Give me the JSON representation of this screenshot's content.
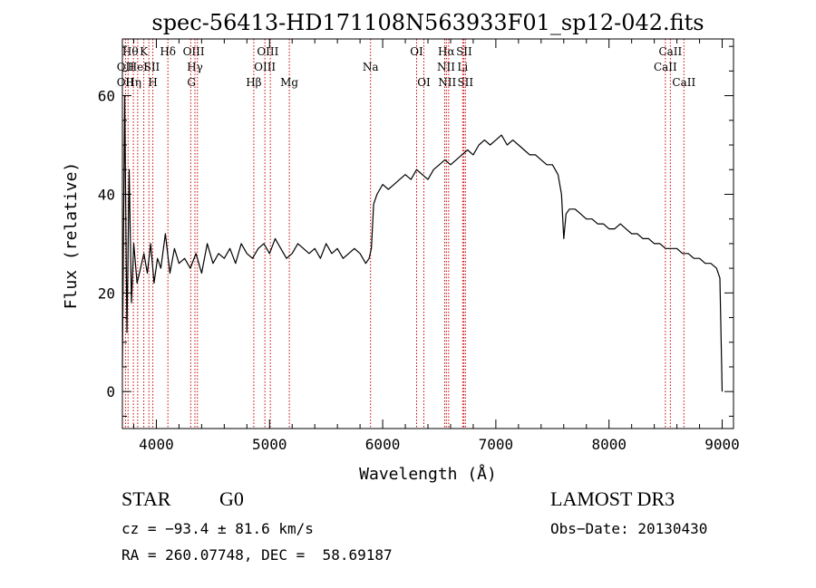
{
  "chart_data": {
    "type": "line",
    "title": "spec-56413-HD171108N563933F01_sp12-042.fits",
    "xlabel": "Wavelength (Å)",
    "ylabel": "Flux (relative)",
    "xlim": [
      3700,
      9100
    ],
    "ylim": [
      -7.5,
      71.5
    ],
    "xticks": [
      "4000",
      "5000",
      "6000",
      "7000",
      "8000",
      "9000"
    ],
    "yticks": [
      "0",
      "20",
      "40",
      "60"
    ],
    "grid": false,
    "series": [
      {
        "name": "",
        "color": "#000000",
        "x": [
          3700,
          3720,
          3740,
          3760,
          3780,
          3800,
          3830,
          3860,
          3890,
          3920,
          3950,
          3980,
          4010,
          4040,
          4080,
          4120,
          4160,
          4200,
          4250,
          4300,
          4350,
          4400,
          4450,
          4500,
          4550,
          4600,
          4650,
          4700,
          4750,
          4800,
          4850,
          4900,
          4950,
          5000,
          5050,
          5100,
          5150,
          5200,
          5250,
          5300,
          5350,
          5400,
          5450,
          5500,
          5550,
          5600,
          5650,
          5700,
          5750,
          5800,
          5850,
          5880,
          5900,
          5920,
          5950,
          6000,
          6050,
          6100,
          6150,
          6200,
          6250,
          6300,
          6350,
          6400,
          6450,
          6500,
          6550,
          6600,
          6650,
          6700,
          6750,
          6800,
          6850,
          6900,
          6950,
          7000,
          7050,
          7100,
          7150,
          7200,
          7250,
          7300,
          7350,
          7400,
          7450,
          7500,
          7550,
          7580,
          7600,
          7620,
          7650,
          7700,
          7750,
          7800,
          7850,
          7900,
          7950,
          8000,
          8050,
          8100,
          8150,
          8200,
          8250,
          8300,
          8350,
          8400,
          8450,
          8500,
          8550,
          8600,
          8650,
          8700,
          8750,
          8800,
          8850,
          8900,
          8950,
          8980,
          9000
        ],
        "y": [
          5,
          60,
          12,
          45,
          18,
          30,
          22,
          25,
          28,
          24,
          30,
          22,
          27,
          25,
          32,
          24,
          29,
          26,
          27,
          25,
          28,
          24,
          30,
          26,
          28,
          27,
          29,
          26,
          30,
          28,
          27,
          29,
          30,
          28,
          31,
          29,
          27,
          28,
          30,
          29,
          28,
          29,
          27,
          30,
          28,
          29,
          27,
          28,
          29,
          28,
          26,
          27,
          29,
          38,
          40,
          42,
          41,
          42,
          43,
          44,
          43,
          45,
          44,
          43,
          45,
          46,
          47,
          46,
          47,
          48,
          49,
          48,
          50,
          51,
          50,
          51,
          52,
          50,
          51,
          50,
          49,
          48,
          48,
          47,
          46,
          46,
          44,
          40,
          31,
          36,
          37,
          37,
          36,
          35,
          35,
          34,
          34,
          33,
          33,
          34,
          33,
          32,
          32,
          31,
          31,
          30,
          30,
          29,
          29,
          29,
          28,
          28,
          27,
          27,
          26,
          26,
          25,
          23,
          0
        ]
      }
    ],
    "line_markers": [
      {
        "x": 3727,
        "names": [
          "OII"
        ]
      },
      {
        "x": 3750,
        "names": [
          "Hθ"
        ]
      },
      {
        "x": 3797,
        "names": [
          "Hη"
        ]
      },
      {
        "x": 3835,
        "names": [
          "HeI"
        ]
      },
      {
        "x": 3889,
        "names": [
          "K"
        ]
      },
      {
        "x": 3934,
        "names": [
          "SII"
        ]
      },
      {
        "x": 3969,
        "names": [
          "H"
        ]
      },
      {
        "x": 4102,
        "names": [
          "Hδ"
        ]
      },
      {
        "x": 4304,
        "names": [
          "OIII"
        ]
      },
      {
        "x": 4341,
        "names": [
          "Hγ"
        ]
      },
      {
        "x": 4363,
        "names": [
          "G"
        ]
      },
      {
        "x": 4861,
        "names": [
          "Hβ"
        ]
      },
      {
        "x": 4959,
        "names": [
          "OIII"
        ]
      },
      {
        "x": 5007,
        "names": [
          "OIII"
        ]
      },
      {
        "x": 5175,
        "names": [
          "Mg"
        ]
      },
      {
        "x": 5893,
        "names": [
          "Na"
        ]
      },
      {
        "x": 6300,
        "names": [
          "OI"
        ]
      },
      {
        "x": 6364,
        "names": [
          "OI"
        ]
      },
      {
        "x": 6548,
        "names": [
          "NII"
        ]
      },
      {
        "x": 6563,
        "names": [
          "Hα"
        ]
      },
      {
        "x": 6583,
        "names": [
          "NII"
        ]
      },
      {
        "x": 6707,
        "names": [
          "Li"
        ]
      },
      {
        "x": 6717,
        "names": [
          "SII"
        ]
      },
      {
        "x": 6731,
        "names": [
          "SII"
        ]
      },
      {
        "x": 8498,
        "names": [
          "CaII"
        ]
      },
      {
        "x": 8542,
        "names": [
          "CaII"
        ]
      },
      {
        "x": 8662,
        "names": [
          "CaII"
        ]
      }
    ],
    "line_labels": [
      {
        "text": "OII",
        "x": 3727,
        "row": 2
      },
      {
        "text": "OII",
        "x": 3727,
        "row": 3
      },
      {
        "text": "Hθ",
        "x": 3770,
        "row": 1
      },
      {
        "text": "K",
        "x": 3889,
        "row": 1
      },
      {
        "text": "Hδ",
        "x": 4102,
        "row": 1
      },
      {
        "text": "HeI",
        "x": 3835,
        "row": 2
      },
      {
        "text": "SII",
        "x": 3960,
        "row": 2
      },
      {
        "text": "Hη",
        "x": 3797,
        "row": 3
      },
      {
        "text": "H",
        "x": 3969,
        "row": 3
      },
      {
        "text": "OIII",
        "x": 4330,
        "row": 1
      },
      {
        "text": "Hγ",
        "x": 4341,
        "row": 2
      },
      {
        "text": "G",
        "x": 4310,
        "row": 3
      },
      {
        "text": "OIII",
        "x": 4985,
        "row": 1
      },
      {
        "text": "OIII",
        "x": 4959,
        "row": 2
      },
      {
        "text": "Hβ",
        "x": 4861,
        "row": 3
      },
      {
        "text": "Mg",
        "x": 5175,
        "row": 3
      },
      {
        "text": "Na",
        "x": 5893,
        "row": 2
      },
      {
        "text": "OI",
        "x": 6300,
        "row": 1
      },
      {
        "text": "OI",
        "x": 6364,
        "row": 3
      },
      {
        "text": "Hα",
        "x": 6563,
        "row": 1
      },
      {
        "text": "SII",
        "x": 6720,
        "row": 1
      },
      {
        "text": "NII",
        "x": 6560,
        "row": 2
      },
      {
        "text": "Li",
        "x": 6707,
        "row": 2
      },
      {
        "text": "NII",
        "x": 6570,
        "row": 3
      },
      {
        "text": "SII",
        "x": 6731,
        "row": 3
      },
      {
        "text": "CaII",
        "x": 8542,
        "row": 1
      },
      {
        "text": "CaII",
        "x": 8498,
        "row": 2
      },
      {
        "text": "CaII",
        "x": 8662,
        "row": 3
      }
    ],
    "marker_color": "#cc0000",
    "line_color": "#000000"
  },
  "info": {
    "object_class": "STAR",
    "subclass": "G0",
    "survey": "LAMOST DR3",
    "redshift_line": "cz = −93.4 ± 81.6 km/s",
    "obs_date_line": "Obs−Date: 20130430",
    "coords_line": "RA = 260.07748, DEC =  58.69187"
  }
}
